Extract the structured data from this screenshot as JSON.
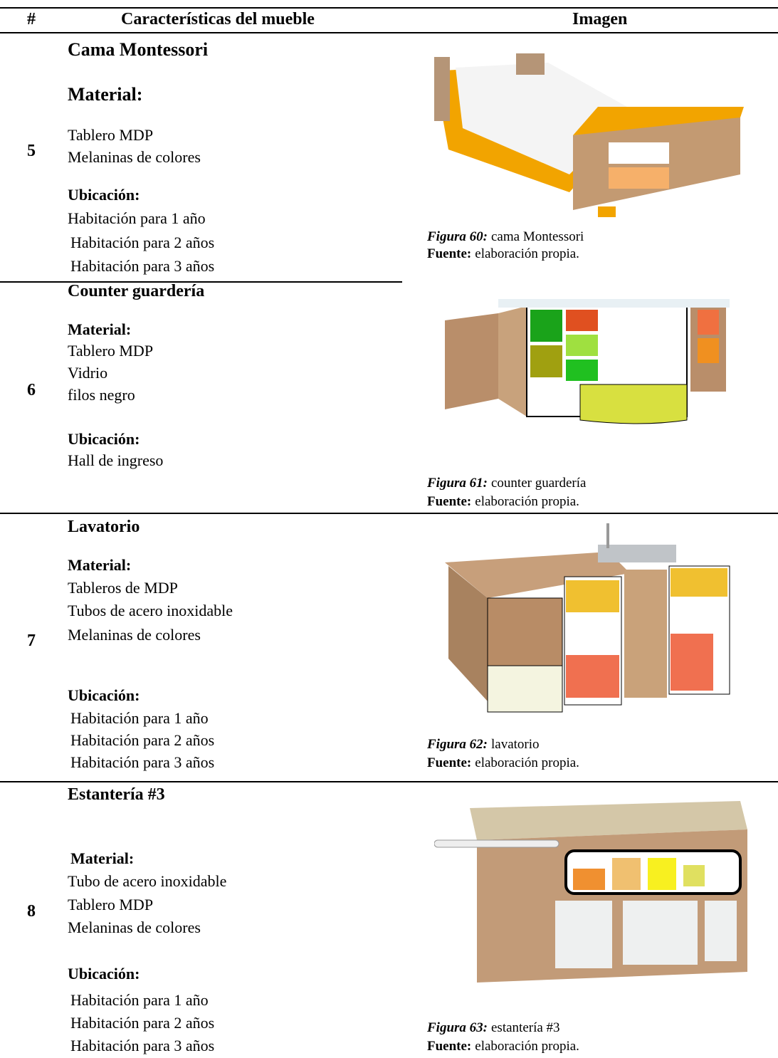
{
  "table": {
    "headers": [
      "#",
      "Características del mueble",
      "Imagen"
    ],
    "rows": [
      {
        "number": "5",
        "name": "Cama Montessori",
        "material_label": "Material:",
        "materials": [
          "Tablero MDP",
          "Melaninas de colores"
        ],
        "location_label": "Ubicación:",
        "locations": [
          "Habitación para 1 año",
          "Habitación para 2 años",
          "Habitación para 3 años"
        ],
        "figure_label": "Figura 60:",
        "figure_caption": "cama Montessori",
        "source_label": "Fuente:",
        "source": "elaboración propia."
      },
      {
        "number": "6",
        "name": "Counter guardería",
        "material_label": "Material:",
        "materials": [
          "Tablero MDP",
          "Vidrio",
          "filos negro"
        ],
        "location_label": "Ubicación:",
        "locations": [
          "Hall de ingreso"
        ],
        "figure_label": "Figura 61:",
        "figure_caption": "counter guardería",
        "source_label": "Fuente:",
        "source": "elaboración propia."
      },
      {
        "number": "7",
        "name": "Lavatorio",
        "material_label": "Material:",
        "materials": [
          "Tableros de MDP",
          "Tubos de acero inoxidable",
          "Melaninas de colores"
        ],
        "location_label": "Ubicación:",
        "locations": [
          "Habitación para 1 año",
          "Habitación para 2 años",
          "Habitación para 3 años"
        ],
        "figure_label": "Figura 62:",
        "figure_caption": "lavatorio",
        "source_label": "Fuente:",
        "source": "elaboración propia."
      },
      {
        "number": "8",
        "name": "Estantería #3",
        "material_label": "Material:",
        "materials": [
          "Tubo de acero inoxidable",
          "Tablero MDP",
          "Melaninas de colores"
        ],
        "location_label": "Ubicación:",
        "locations": [
          "Habitación para 1 año",
          "Habitación para 2 años",
          "Habitación para 3 años"
        ],
        "figure_label": "Figura 63:",
        "figure_caption": "estantería #3",
        "source_label": "Fuente:",
        "source": "elaboración propia."
      }
    ]
  }
}
